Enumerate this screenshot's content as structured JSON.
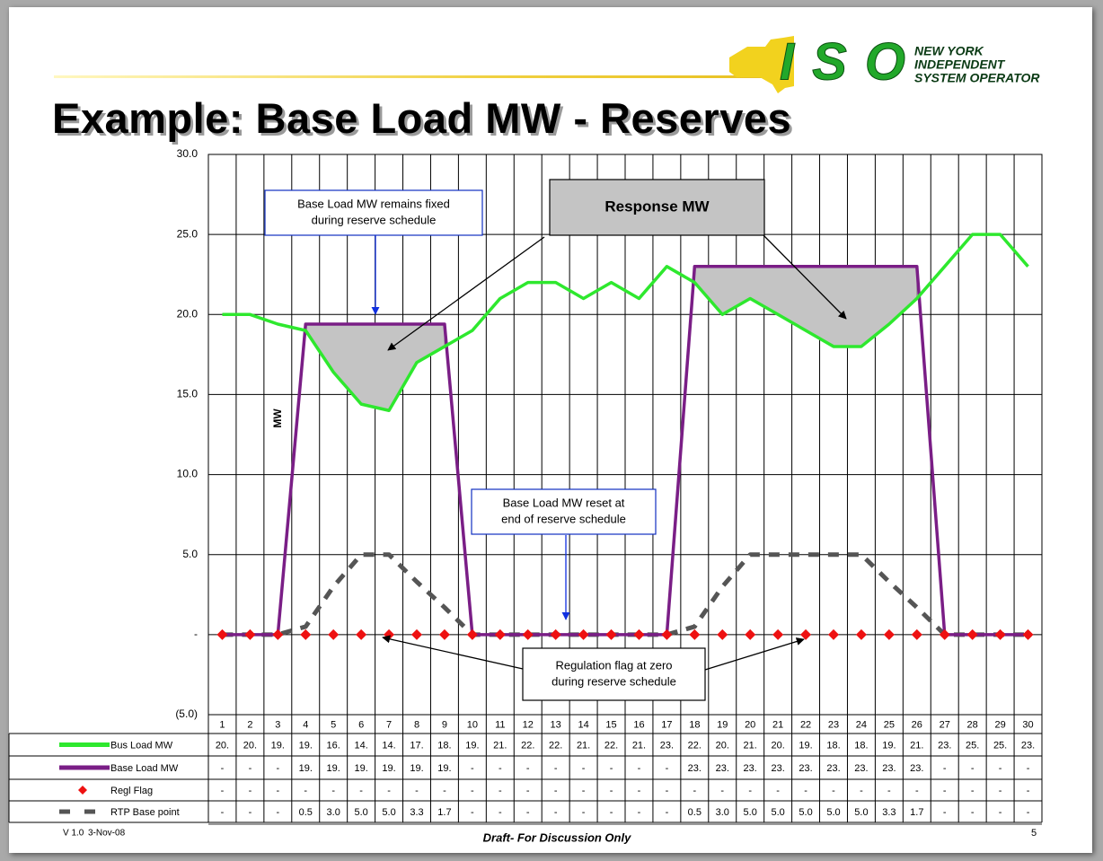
{
  "header": {
    "title": "Example: Base Load MW - Reserves",
    "logo": {
      "mark": "ISO",
      "lines": [
        "NEW YORK",
        "INDEPENDENT",
        "SYSTEM OPERATOR"
      ]
    }
  },
  "chart_data": {
    "type": "line",
    "y_label": "MW",
    "categories": [
      1,
      2,
      3,
      4,
      5,
      6,
      7,
      8,
      9,
      10,
      11,
      12,
      13,
      14,
      15,
      16,
      17,
      18,
      19,
      20,
      21,
      22,
      23,
      24,
      25,
      26,
      27,
      28,
      29,
      30
    ],
    "ylim": [
      -5,
      30
    ],
    "yticks": [
      {
        "value": -5,
        "label": "(5.0)"
      },
      {
        "value": 0,
        "label": "-"
      },
      {
        "value": 5,
        "label": "5.0"
      },
      {
        "value": 10,
        "label": "10.0"
      },
      {
        "value": 15,
        "label": "15.0"
      },
      {
        "value": 20,
        "label": "20.0"
      },
      {
        "value": 25,
        "label": "25.0"
      },
      {
        "value": 30,
        "label": "30.0"
      }
    ],
    "grid": true,
    "series": [
      {
        "name": "Bus Load MW",
        "color": "#2ee82e",
        "style": "line",
        "values": [
          20,
          20,
          19.4,
          19,
          16.4,
          14.4,
          14,
          17,
          18,
          19,
          21,
          22,
          22,
          21,
          22,
          21,
          23,
          22,
          20,
          21,
          20,
          19,
          18,
          18,
          19.4,
          21,
          23,
          25,
          25,
          23
        ],
        "value_labels": [
          "20.",
          "20.",
          "19.",
          "19.",
          "16.",
          "14.",
          "14.",
          "17.",
          "18.",
          "19.",
          "21.",
          "22.",
          "22.",
          "21.",
          "22.",
          "21.",
          "23.",
          "22.",
          "20.",
          "21.",
          "20.",
          "19.",
          "18.",
          "18.",
          "19.",
          "21.",
          "23.",
          "25.",
          "25.",
          "23."
        ]
      },
      {
        "name": "Base Load MW",
        "color": "#7a1e86",
        "style": "line",
        "values": [
          0,
          0,
          0,
          19.4,
          19.4,
          19.4,
          19.4,
          19.4,
          19.4,
          0,
          0,
          0,
          0,
          0,
          0,
          0,
          0,
          23,
          23,
          23,
          23,
          23,
          23,
          23,
          23,
          23,
          0,
          0,
          0,
          0
        ],
        "value_labels": [
          "-",
          "-",
          "-",
          "19.",
          "19.",
          "19.",
          "19.",
          "19.",
          "19.",
          "-",
          "-",
          "-",
          "-",
          "-",
          "-",
          "-",
          "-",
          "23.",
          "23.",
          "23.",
          "23.",
          "23.",
          "23.",
          "23.",
          "23.",
          "23.",
          "-",
          "-",
          "-",
          "-"
        ]
      },
      {
        "name": "Regl Flag",
        "color": "#ee1111",
        "style": "markers",
        "values": [
          0,
          0,
          0,
          0,
          0,
          0,
          0,
          0,
          0,
          0,
          0,
          0,
          0,
          0,
          0,
          0,
          0,
          0,
          0,
          0,
          0,
          0,
          0,
          0,
          0,
          0,
          0,
          0,
          0,
          0
        ],
        "value_labels": [
          "-",
          "-",
          "-",
          "-",
          "-",
          "-",
          "-",
          "-",
          "-",
          "-",
          "-",
          "-",
          "-",
          "-",
          "-",
          "-",
          "-",
          "-",
          "-",
          "-",
          "-",
          "-",
          "-",
          "-",
          "-",
          "-",
          "-",
          "-",
          "-",
          "-"
        ]
      },
      {
        "name": "RTP Base point",
        "color": "#555555",
        "style": "dashed",
        "values": [
          0,
          0,
          0,
          0.5,
          3.0,
          5.0,
          5.0,
          3.3,
          1.7,
          0,
          0,
          0,
          0,
          0,
          0,
          0,
          0,
          0.5,
          3.0,
          5.0,
          5.0,
          5.0,
          5.0,
          5.0,
          3.3,
          1.7,
          0,
          0,
          0,
          0
        ],
        "value_labels": [
          "-",
          "-",
          "-",
          "0.5",
          "3.0",
          "5.0",
          "5.0",
          "3.3",
          "1.7",
          "-",
          "-",
          "-",
          "-",
          "-",
          "-",
          "-",
          "-",
          "0.5",
          "3.0",
          "5.0",
          "5.0",
          "5.0",
          "5.0",
          "5.0",
          "3.3",
          "1.7",
          "-",
          "-",
          "-",
          "-"
        ]
      }
    ],
    "annotations": [
      {
        "lines": [
          "Base Load MW remains fixed",
          "during reserve schedule"
        ]
      },
      {
        "lines": [
          "Response MW"
        ]
      },
      {
        "lines": [
          "Base Load MW reset at",
          "end of reserve schedule"
        ]
      },
      {
        "lines": [
          "Regulation flag at zero",
          "during reserve schedule"
        ]
      }
    ]
  },
  "footer": {
    "version": "V 1.0",
    "date": "3-Nov-08",
    "note": "Draft- For Discussion Only",
    "page": "5"
  }
}
